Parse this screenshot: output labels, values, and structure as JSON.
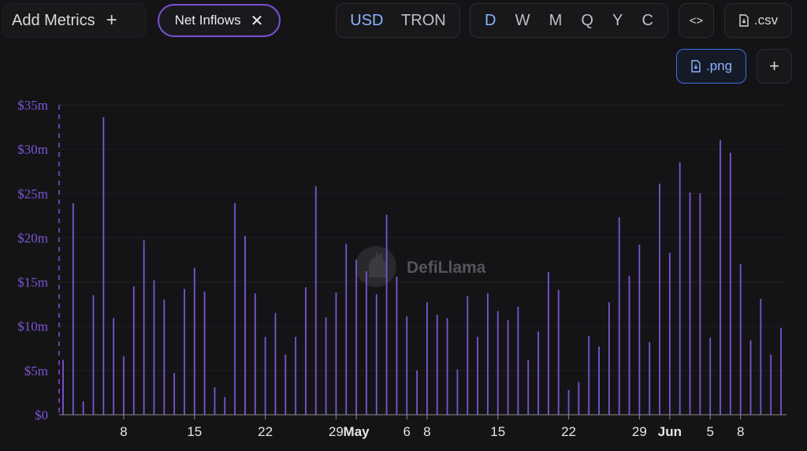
{
  "toolbar": {
    "add_metrics_label": "Add Metrics",
    "add_metrics_icon": "plus-icon",
    "metric_chip_label": "Net Inflows",
    "metric_chip_icon": "close-icon",
    "currency_options": [
      "USD",
      "TRON"
    ],
    "currency_selected": "USD",
    "period_options": [
      "D",
      "W",
      "M",
      "Q",
      "Y",
      "C"
    ],
    "period_selected": "D",
    "embed_icon": "code-icon",
    "csv_label": ".csv",
    "png_label": ".png",
    "expand_icon": "plus-icon",
    "file_icon": "file-download-icon"
  },
  "watermark": {
    "text": "DefiLlama",
    "icon": "llama-logo-icon"
  },
  "colors": {
    "background": "#141416",
    "bar": "#7b55d4",
    "axis_label": "#7b55d4",
    "active": "#8ab4ff",
    "chip_border": "#7b4fd6"
  },
  "chart_data": {
    "type": "bar",
    "ylabel": "",
    "xlabel": "",
    "ylim": [
      0,
      35
    ],
    "y_unit": "$m",
    "y_ticks": [
      {
        "value": 0,
        "label": "$0"
      },
      {
        "value": 5,
        "label": "$5m"
      },
      {
        "value": 10,
        "label": "$10m"
      },
      {
        "value": 15,
        "label": "$15m"
      },
      {
        "value": 20,
        "label": "$20m"
      },
      {
        "value": 25,
        "label": "$25m"
      },
      {
        "value": 30,
        "label": "$30m"
      },
      {
        "value": 35,
        "label": "$35m"
      }
    ],
    "x_start": "2025-04-02",
    "x_end": "2025-06-12",
    "x_ticks": [
      {
        "date": "2025-04-08",
        "label": "8"
      },
      {
        "date": "2025-04-15",
        "label": "15"
      },
      {
        "date": "2025-04-22",
        "label": "22"
      },
      {
        "date": "2025-04-29",
        "label": "29"
      },
      {
        "date": "2025-05-01",
        "label": "May",
        "bold": true
      },
      {
        "date": "2025-05-06",
        "label": "6"
      },
      {
        "date": "2025-05-08",
        "label": "8"
      },
      {
        "date": "2025-05-15",
        "label": "15"
      },
      {
        "date": "2025-05-22",
        "label": "22"
      },
      {
        "date": "2025-05-29",
        "label": "29"
      },
      {
        "date": "2025-06-01",
        "label": "Jun",
        "bold": true
      },
      {
        "date": "2025-06-05",
        "label": "5"
      },
      {
        "date": "2025-06-08",
        "label": "8"
      }
    ],
    "series": [
      {
        "values": [
          [
            "2025-04-02",
            6.2
          ],
          [
            "2025-04-03",
            23.9
          ],
          [
            "2025-04-04",
            1.5
          ],
          [
            "2025-04-05",
            13.5
          ],
          [
            "2025-04-06",
            33.6
          ],
          [
            "2025-04-07",
            10.9
          ],
          [
            "2025-04-08",
            6.6
          ],
          [
            "2025-04-09",
            14.5
          ],
          [
            "2025-04-10",
            19.7
          ],
          [
            "2025-04-11",
            15.2
          ],
          [
            "2025-04-12",
            13.0
          ],
          [
            "2025-04-13",
            4.7
          ],
          [
            "2025-04-14",
            14.2
          ],
          [
            "2025-04-15",
            16.6
          ],
          [
            "2025-04-16",
            13.9
          ],
          [
            "2025-04-17",
            3.1
          ],
          [
            "2025-04-18",
            2.0
          ],
          [
            "2025-04-19",
            23.9
          ],
          [
            "2025-04-20",
            20.2
          ],
          [
            "2025-04-21",
            13.7
          ],
          [
            "2025-04-22",
            8.8
          ],
          [
            "2025-04-23",
            11.5
          ],
          [
            "2025-04-24",
            6.8
          ],
          [
            "2025-04-25",
            8.8
          ],
          [
            "2025-04-26",
            14.4
          ],
          [
            "2025-04-27",
            25.8
          ],
          [
            "2025-04-28",
            11.0
          ],
          [
            "2025-04-29",
            13.8
          ],
          [
            "2025-04-30",
            19.3
          ],
          [
            "2025-05-01",
            17.5
          ],
          [
            "2025-05-02",
            16.2
          ],
          [
            "2025-05-03",
            13.6
          ],
          [
            "2025-05-04",
            22.6
          ],
          [
            "2025-05-05",
            15.6
          ],
          [
            "2025-05-06",
            11.1
          ],
          [
            "2025-05-07",
            5.0
          ],
          [
            "2025-05-08",
            12.7
          ],
          [
            "2025-05-09",
            11.3
          ],
          [
            "2025-05-10",
            10.9
          ],
          [
            "2025-05-11",
            5.1
          ],
          [
            "2025-05-12",
            13.4
          ],
          [
            "2025-05-13",
            8.8
          ],
          [
            "2025-05-14",
            13.7
          ],
          [
            "2025-05-15",
            11.7
          ],
          [
            "2025-05-16",
            10.7
          ],
          [
            "2025-05-17",
            12.2
          ],
          [
            "2025-05-18",
            6.2
          ],
          [
            "2025-05-19",
            9.4
          ],
          [
            "2025-05-20",
            16.1
          ],
          [
            "2025-05-21",
            14.1
          ],
          [
            "2025-05-22",
            2.8
          ],
          [
            "2025-05-23",
            3.7
          ],
          [
            "2025-05-24",
            8.9
          ],
          [
            "2025-05-25",
            7.7
          ],
          [
            "2025-05-26",
            12.7
          ],
          [
            "2025-05-27",
            22.3
          ],
          [
            "2025-05-28",
            15.7
          ],
          [
            "2025-05-29",
            19.2
          ],
          [
            "2025-05-30",
            8.2
          ],
          [
            "2025-05-31",
            26.1
          ],
          [
            "2025-06-01",
            18.3
          ],
          [
            "2025-06-02",
            28.5
          ],
          [
            "2025-06-03",
            25.1
          ],
          [
            "2025-06-04",
            25.0
          ],
          [
            "2025-06-05",
            8.7
          ],
          [
            "2025-06-06",
            31.0
          ],
          [
            "2025-06-07",
            29.6
          ],
          [
            "2025-06-08",
            17.0
          ],
          [
            "2025-06-09",
            8.4
          ],
          [
            "2025-06-10",
            13.1
          ],
          [
            "2025-06-11",
            6.8
          ],
          [
            "2025-06-12",
            9.8
          ]
        ]
      }
    ],
    "grid": true,
    "legend": "none"
  }
}
